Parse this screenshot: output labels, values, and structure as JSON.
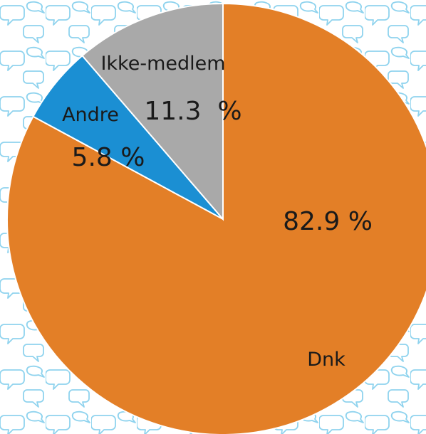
{
  "chart_data": {
    "type": "pie",
    "title": "",
    "slices": [
      {
        "label": "Dnk",
        "value": 82.9,
        "value_label": "82.9 %",
        "color": "#e37f27"
      },
      {
        "label": "Andre",
        "value": 5.8,
        "value_label": "5.8 %",
        "color": "#1b8fd3"
      },
      {
        "label": "Ikke-medlem",
        "value": 11.3,
        "value_label": "11.3  %",
        "color": "#a9a9a9"
      }
    ],
    "start": "12 o'clock",
    "direction": "clockwise",
    "legend": "none",
    "background_pattern": "speech-bubble-outline",
    "background_pattern_color": "#8fd3ee"
  }
}
